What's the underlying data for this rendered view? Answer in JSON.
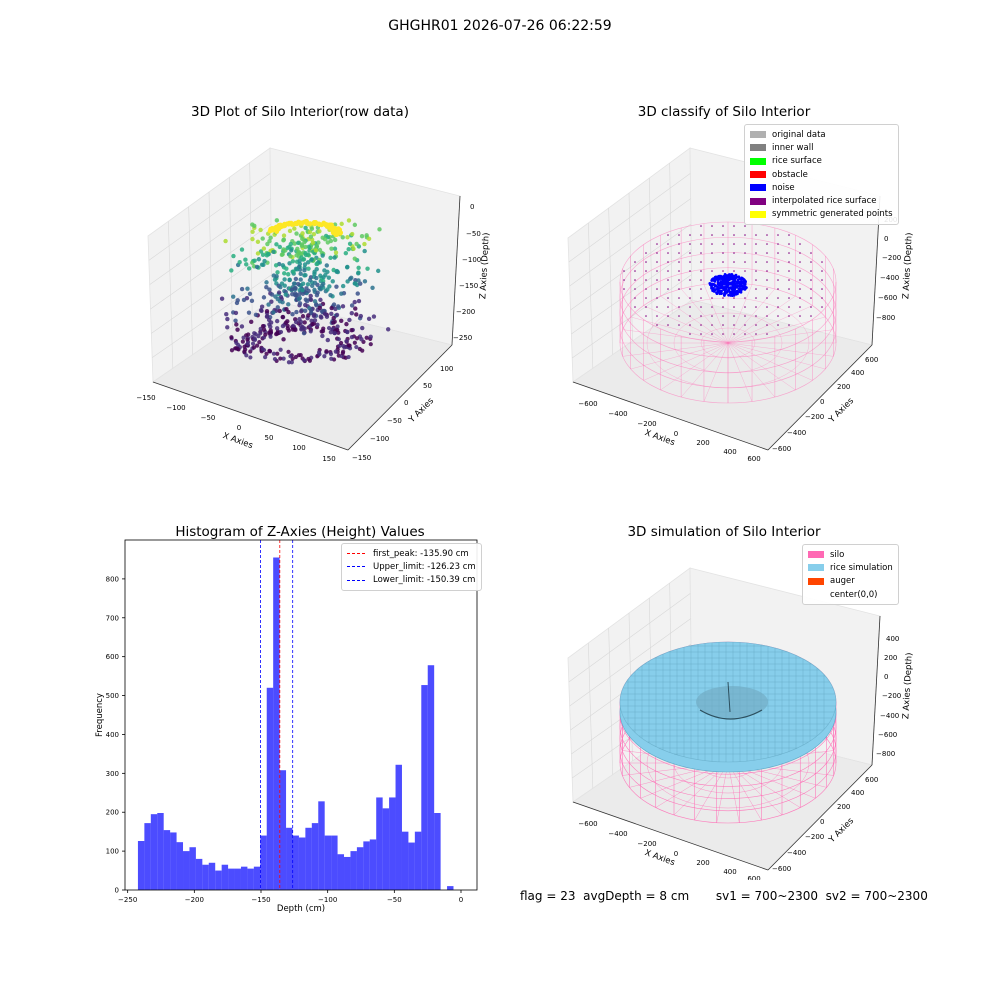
{
  "figure": {
    "suptitle": "GHGHR01 2026-07-26 06:22:59"
  },
  "panels": {
    "raw": {
      "title": "3D Plot of Silo Interior(row data)",
      "xlabel": "X Axies",
      "ylabel": "Y Axies",
      "zlabel": "Z Axies (Depth)",
      "xticks": [
        "−150",
        "−100",
        "−50",
        "0",
        "50",
        "100",
        "150"
      ],
      "yticks": [
        "−150",
        "−100",
        "−50",
        "0",
        "50",
        "100"
      ],
      "zticks": [
        "0",
        "−50",
        "−100",
        "−150",
        "−200",
        "−250"
      ],
      "colormap": "viridis"
    },
    "classify": {
      "title": "3D classify of Silo Interior",
      "xlabel": "X Axies",
      "ylabel": "Y Axies",
      "zlabel": "Z Axies (Depth)",
      "xticks": [
        "−600",
        "−400",
        "−200",
        "0",
        "200",
        "400",
        "600"
      ],
      "yticks": [
        "−600",
        "−400",
        "−200",
        "0",
        "200",
        "400",
        "600"
      ],
      "zticks": [
        "200",
        "0",
        "−200",
        "−400",
        "−600",
        "−800"
      ],
      "legend": [
        {
          "label": "original data",
          "color": "#b0b0b0"
        },
        {
          "label": "inner wall",
          "color": "#808080"
        },
        {
          "label": "rice surface",
          "color": "#00ff00"
        },
        {
          "label": "obstacle",
          "color": "#ff0000"
        },
        {
          "label": "noise",
          "color": "#0000ff"
        },
        {
          "label": "interpolated rice surface",
          "color": "#800080"
        },
        {
          "label": "symmetric generated points",
          "color": "#ffff00"
        }
      ],
      "wire_color": "#ff69b4"
    },
    "histogram": {
      "title": "Histogram of Z-Axies (Height) Values",
      "xlabel": "Depth (cm)",
      "ylabel": "Frequency",
      "legend": [
        {
          "label": "first_peak: -135.90 cm",
          "color": "#ff0000"
        },
        {
          "label": "Upper_limit: -126.23 cm",
          "color": "#0000ff"
        },
        {
          "label": "Lower_limit: -150.39 cm",
          "color": "#0000ff"
        }
      ],
      "bar_color": "#0000ff"
    },
    "simulation": {
      "title": "3D simulation of Silo Interior",
      "xlabel": "X Axies",
      "ylabel": "Y Axies",
      "zlabel": "Z Axies (Depth)",
      "xticks": [
        "−600",
        "−400",
        "−200",
        "0",
        "200",
        "400",
        "600"
      ],
      "yticks": [
        "−600",
        "−400",
        "−200",
        "0",
        "200",
        "400",
        "600"
      ],
      "zticks": [
        "400",
        "200",
        "0",
        "−200",
        "−400",
        "−600",
        "−800"
      ],
      "legend": [
        {
          "label": "silo",
          "color": "#ff69b4"
        },
        {
          "label": "rice simulation",
          "color": "#87ceeb"
        },
        {
          "label": "auger",
          "color": "#ff4500"
        },
        {
          "label": "center(0,0)",
          "color": "#ffffff"
        }
      ],
      "surface_color": "#87ceeb"
    }
  },
  "stats": {
    "text": "flag = 23  avgDepth = 8 cm       sv1 = 700~2300  sv2 = 700~2300"
  },
  "chart_data": {
    "type": "bar",
    "title": "Histogram of Z-Axies (Height) Values",
    "xlabel": "Depth (cm)",
    "ylabel": "Frequency",
    "xlim": [
      -252,
      12
    ],
    "ylim": [
      0,
      900
    ],
    "xticks": [
      -250,
      -200,
      -150,
      -100,
      -50,
      0
    ],
    "yticks": [
      0,
      100,
      200,
      300,
      400,
      500,
      600,
      700,
      800
    ],
    "bin_start": -242.3,
    "bin_width": 4.83,
    "values": [
      126,
      172,
      195,
      198,
      154,
      148,
      123,
      100,
      110,
      80,
      65,
      70,
      50,
      65,
      55,
      55,
      60,
      55,
      60,
      140,
      520,
      855,
      308,
      160,
      140,
      135,
      160,
      172,
      228,
      140,
      140,
      92,
      85,
      100,
      110,
      125,
      130,
      238,
      210,
      238,
      322,
      150,
      122,
      150,
      527,
      578,
      198,
      0,
      10
    ],
    "vlines": [
      {
        "name": "first_peak",
        "x": -135.9,
        "color": "#ff0000"
      },
      {
        "name": "Upper_limit",
        "x": -126.23,
        "color": "#0000ff"
      },
      {
        "name": "Lower_limit",
        "x": -150.39,
        "color": "#0000ff"
      }
    ]
  }
}
